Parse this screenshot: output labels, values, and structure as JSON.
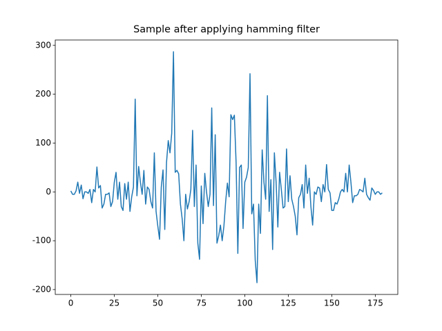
{
  "chart_data": {
    "type": "line",
    "title": "Sample after applying hamming filter",
    "x": [
      0,
      1,
      2,
      3,
      4,
      5,
      6,
      7,
      8,
      9,
      10,
      11,
      12,
      13,
      14,
      15,
      16,
      17,
      18,
      19,
      20,
      21,
      22,
      23,
      24,
      25,
      26,
      27,
      28,
      29,
      30,
      31,
      32,
      33,
      34,
      35,
      36,
      37,
      38,
      39,
      40,
      41,
      42,
      43,
      44,
      45,
      46,
      47,
      48,
      49,
      50,
      51,
      52,
      53,
      54,
      55,
      56,
      57,
      58,
      59,
      60,
      61,
      62,
      63,
      64,
      65,
      66,
      67,
      68,
      69,
      70,
      71,
      72,
      73,
      74,
      75,
      76,
      77,
      78,
      79,
      80,
      81,
      82,
      83,
      84,
      85,
      86,
      87,
      88,
      89,
      90,
      91,
      92,
      93,
      94,
      95,
      96,
      97,
      98,
      99,
      100,
      101,
      102,
      103,
      104,
      105,
      106,
      107,
      108,
      109,
      110,
      111,
      112,
      113,
      114,
      115,
      116,
      117,
      118,
      119,
      120,
      121,
      122,
      123,
      124,
      125,
      126,
      127,
      128,
      129,
      130,
      131,
      132,
      133,
      134,
      135,
      136,
      137,
      138,
      139,
      140,
      141,
      142,
      143,
      144,
      145,
      146,
      147,
      148,
      149,
      150,
      151,
      152,
      153,
      154,
      155,
      156,
      157,
      158,
      159,
      160,
      161,
      162,
      163,
      164,
      165,
      166,
      167,
      168,
      169,
      170,
      171,
      172,
      173,
      174,
      175,
      176,
      177,
      178,
      179
    ],
    "series": [
      {
        "color": "#1f77b4",
        "values": [
          2,
          -5,
          -5,
          2,
          20,
          -3,
          14,
          -14,
          0,
          0,
          -3,
          5,
          -22,
          5,
          0,
          51,
          8,
          13,
          -33,
          -25,
          -5,
          -5,
          -2,
          -30,
          -20,
          20,
          40,
          -15,
          20,
          -30,
          -38,
          17,
          -15,
          20,
          -40,
          -10,
          10,
          190,
          -8,
          52,
          20,
          -5,
          44,
          -25,
          10,
          5,
          -20,
          -33,
          80,
          -40,
          -70,
          -97,
          10,
          45,
          -77,
          60,
          105,
          80,
          120,
          287,
          40,
          44,
          37,
          -25,
          -55,
          -100,
          -5,
          -35,
          -20,
          5,
          126,
          -30,
          55,
          -105,
          -138,
          12,
          -65,
          38,
          0,
          -30,
          -5,
          172,
          -28,
          117,
          -105,
          -90,
          -68,
          -100,
          -70,
          -20,
          18,
          -10,
          158,
          148,
          157,
          60,
          -126,
          50,
          55,
          -75,
          20,
          30,
          50,
          242,
          -45,
          -25,
          -140,
          -186,
          -25,
          -85,
          86,
          20,
          -15,
          197,
          -40,
          25,
          -118,
          80,
          20,
          -72,
          40,
          5,
          -33,
          -30,
          88,
          -20,
          33,
          -15,
          -30,
          -50,
          -88,
          -12,
          -5,
          15,
          -33,
          55,
          -3,
          28,
          -30,
          -68,
          0,
          -5,
          10,
          8,
          -20,
          15,
          0,
          56,
          5,
          -2,
          -38,
          -38,
          -22,
          -25,
          -15,
          0,
          5,
          0,
          38,
          0,
          55,
          20,
          -22,
          -8,
          -8,
          -5,
          5,
          3,
          0,
          28,
          -5,
          -12,
          -17,
          8,
          3,
          -5,
          0,
          0,
          -5,
          -2
        ]
      }
    ],
    "xlim": [
      -8.95,
      187.95
    ],
    "ylim": [
      -210,
      311
    ],
    "xticks": [
      0,
      25,
      50,
      75,
      100,
      125,
      150,
      175
    ],
    "yticks": [
      -200,
      -100,
      0,
      100,
      200,
      300
    ]
  }
}
